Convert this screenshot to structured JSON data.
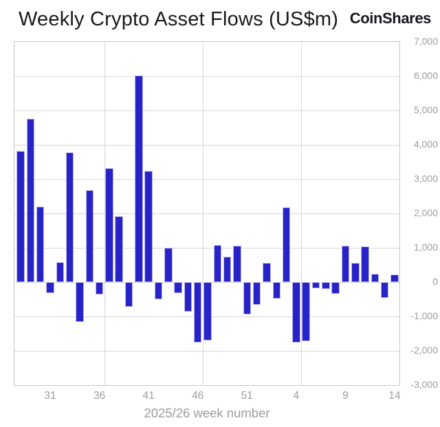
{
  "header": {
    "title": "Weekly Crypto Asset Flows (US$m)",
    "logo": "CoinShares"
  },
  "chart_data": {
    "type": "bar",
    "title": "Weekly Crypto Asset Flows (US$m)",
    "xlabel": "2025/26 week number",
    "ylabel": "",
    "ylim": [
      -3000,
      7000
    ],
    "grid": true,
    "legend": false,
    "categories": [
      "28",
      "29",
      "30",
      "31",
      "32",
      "33",
      "34",
      "35",
      "36",
      "37",
      "38",
      "39",
      "40",
      "41",
      "42",
      "43",
      "44",
      "45",
      "46",
      "47",
      "48",
      "49",
      "50",
      "51",
      "52",
      "1",
      "2",
      "3",
      "4",
      "5",
      "6",
      "7",
      "8",
      "9",
      "10",
      "11",
      "12",
      "13",
      "14"
    ],
    "values": [
      3820,
      4760,
      2200,
      -310,
      590,
      3790,
      -1150,
      2680,
      -360,
      3320,
      1920,
      -720,
      6020,
      3240,
      -500,
      1000,
      -320,
      -850,
      -1760,
      -1700,
      1090,
      740,
      1070,
      -940,
      -660,
      560,
      -470,
      2190,
      -1760,
      -1720,
      -180,
      -200,
      -330,
      1070,
      570,
      1050,
      250,
      -460,
      230
    ],
    "y_tick_values": [
      7000,
      6000,
      5000,
      4000,
      3000,
      2000,
      1000,
      0,
      -1000,
      -2000,
      -3000
    ],
    "y_tick_labels": [
      "7,000",
      "6,000",
      "5,000",
      "4,000",
      "3,000",
      "2,000",
      "1,000",
      "0",
      "-1,000",
      "-2,000",
      "-3,000"
    ],
    "x_tick_labels": [
      "31",
      "36",
      "41",
      "46",
      "51",
      "4",
      "9",
      "14"
    ],
    "x_tick_indices": [
      3,
      8,
      13,
      18,
      23,
      28,
      33,
      38
    ],
    "x_gridline_indices": [
      8,
      18,
      28
    ],
    "colors": {
      "bar_fill": "#2823c9",
      "bar_stroke": "#b9b6ec",
      "grid": "#d7d7d7",
      "frame": "#c6c6c6",
      "axis_text": "#9c9c9c",
      "title_text": "#191919"
    }
  }
}
